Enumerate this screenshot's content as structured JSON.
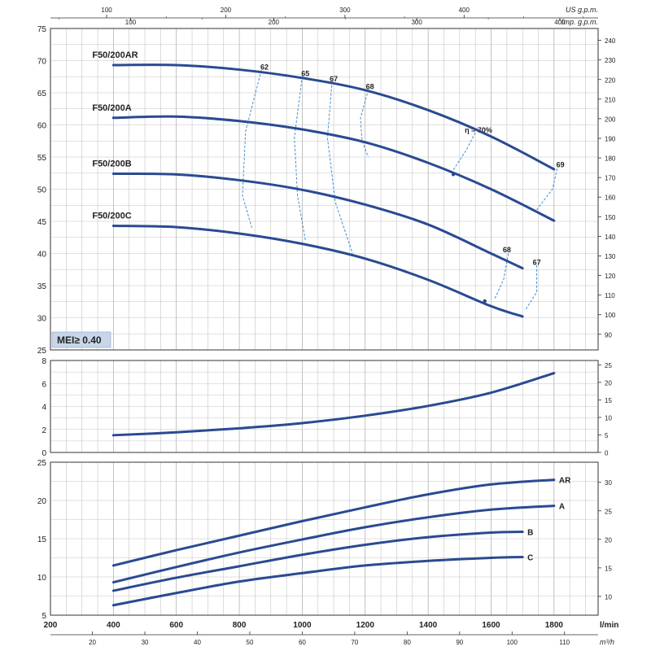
{
  "chart_data": [
    {
      "type": "line",
      "panel": "head",
      "x_unit": "l/min",
      "xlim": [
        200,
        1800
      ],
      "ylim": [
        25,
        75
      ],
      "yticks": [
        25,
        30,
        35,
        40,
        45,
        50,
        55,
        60,
        65,
        70,
        75
      ],
      "y2_ticks": [
        90,
        100,
        110,
        120,
        130,
        140,
        150,
        160,
        170,
        180,
        190,
        200,
        210,
        220,
        230,
        240
      ],
      "top_axis_us": {
        "unit": "US g.p.m.",
        "ticks": [
          100,
          200,
          300,
          400
        ]
      },
      "top_axis_imp": {
        "unit": "Imp. g.p.m.",
        "ticks": [
          100,
          200,
          300,
          400
        ]
      },
      "series": [
        {
          "name": "F50/200AR",
          "x": [
            400,
            600,
            800,
            1000,
            1200,
            1400,
            1600,
            1800
          ],
          "y": [
            69.3,
            69.3,
            68.6,
            67.3,
            65.4,
            62.3,
            58.2,
            53.1
          ]
        },
        {
          "name": "F50/200A",
          "x": [
            400,
            600,
            800,
            1000,
            1200,
            1400,
            1600,
            1800
          ],
          "y": [
            61.1,
            61.3,
            60.6,
            59.3,
            57.3,
            54.1,
            50.0,
            45.1
          ]
        },
        {
          "name": "F50/200B",
          "x": [
            400,
            600,
            800,
            1000,
            1200,
            1400,
            1600,
            1700
          ],
          "y": [
            52.4,
            52.3,
            51.4,
            49.9,
            47.6,
            44.5,
            40.0,
            37.7
          ]
        },
        {
          "name": "F50/200C",
          "x": [
            400,
            600,
            800,
            1000,
            1200,
            1400,
            1600,
            1700
          ],
          "y": [
            44.3,
            44.1,
            43.1,
            41.5,
            39.2,
            35.9,
            31.8,
            30.2
          ]
        }
      ],
      "efficiency_labels": [
        {
          "label": "62",
          "x": 880,
          "y": 68.6
        },
        {
          "label": "65",
          "x": 1010,
          "y": 67.6
        },
        {
          "label": "67",
          "x": 1100,
          "y": 66.8
        },
        {
          "label": "68",
          "x": 1215,
          "y": 65.6
        },
        {
          "label": "η = 70%",
          "x": 1560,
          "y": 58.8
        },
        {
          "label": "69",
          "x": 1820,
          "y": 53.4
        },
        {
          "label": "68",
          "x": 1650,
          "y": 40.2
        },
        {
          "label": "67",
          "x": 1745,
          "y": 38.2
        }
      ],
      "annotation": "MEI≥ 0.40"
    },
    {
      "type": "line",
      "panel": "npsh",
      "xlim": [
        200,
        1800
      ],
      "ylim": [
        0,
        8
      ],
      "yticks": [
        0,
        2,
        4,
        6,
        8
      ],
      "y2_ticks": [
        0,
        5,
        10,
        15,
        20,
        25
      ],
      "series": [
        {
          "x": [
            400,
            600,
            800,
            1000,
            1200,
            1400,
            1600,
            1800
          ],
          "y": [
            1.5,
            1.75,
            2.1,
            2.55,
            3.2,
            4.05,
            5.2,
            6.9
          ]
        }
      ]
    },
    {
      "type": "line",
      "panel": "power",
      "xlim": [
        200,
        1800
      ],
      "ylim": [
        5,
        25
      ],
      "yticks": [
        5,
        10,
        15,
        20,
        25
      ],
      "y2_ticks": [
        10,
        15,
        20,
        25,
        30
      ],
      "xticks": [
        200,
        400,
        600,
        800,
        1000,
        1200,
        1400,
        1600,
        1800
      ],
      "x_unit": "l/min",
      "x2_unit": "m³/h",
      "x2_ticks": [
        20,
        30,
        40,
        50,
        60,
        70,
        80,
        90,
        100,
        110
      ],
      "series": [
        {
          "name": "AR",
          "x": [
            400,
            600,
            800,
            1000,
            1200,
            1400,
            1600,
            1800
          ],
          "y": [
            11.5,
            13.5,
            15.4,
            17.3,
            19.1,
            20.8,
            22.1,
            22.7
          ]
        },
        {
          "name": "A",
          "x": [
            400,
            600,
            800,
            1000,
            1200,
            1400,
            1600,
            1800
          ],
          "y": [
            9.3,
            11.3,
            13.2,
            14.9,
            16.5,
            17.8,
            18.8,
            19.3
          ]
        },
        {
          "name": "B",
          "x": [
            400,
            600,
            800,
            1000,
            1200,
            1400,
            1600,
            1700
          ],
          "y": [
            8.2,
            9.9,
            11.4,
            12.9,
            14.2,
            15.2,
            15.8,
            15.9
          ]
        },
        {
          "name": "C",
          "x": [
            400,
            600,
            800,
            1000,
            1200,
            1400,
            1600,
            1700
          ],
          "y": [
            6.3,
            7.9,
            9.4,
            10.5,
            11.5,
            12.1,
            12.5,
            12.6
          ]
        }
      ]
    }
  ]
}
